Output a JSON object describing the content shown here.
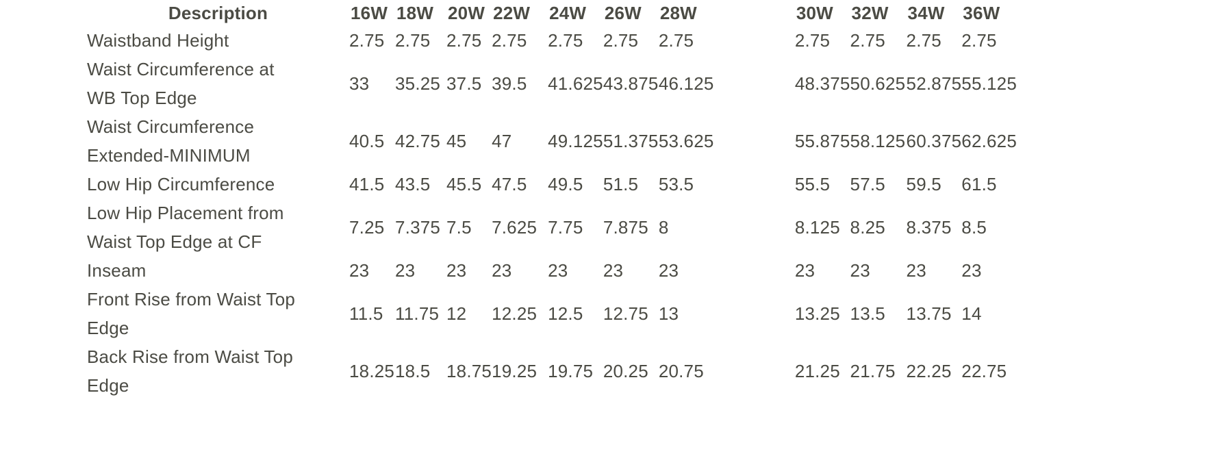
{
  "style": {
    "text_color": "#4b4b44",
    "background": "#ffffff"
  },
  "chart_data": {
    "type": "table",
    "header": {
      "description_label": "Description"
    },
    "columns": [
      "16W",
      "18W",
      "20W",
      "22W",
      "24W",
      "26W",
      "28W",
      "30W",
      "32W",
      "34W",
      "36W"
    ],
    "rows": [
      {
        "description": "Waistband Height",
        "values": [
          "2.75",
          "2.75",
          "2.75",
          "2.75",
          "2.75",
          "2.75",
          "2.75",
          "2.75",
          "2.75",
          "2.75",
          "2.75"
        ]
      },
      {
        "description": "Waist Circumference at\nWB Top Edge",
        "values": [
          "33",
          "35.25",
          "37.5",
          "39.5",
          "41.625",
          "43.875",
          "46.125",
          "48.375",
          "50.625",
          "52.875",
          "55.125"
        ]
      },
      {
        "description": "Waist Circumference\nExtended-MINIMUM",
        "values": [
          "40.5",
          "42.75",
          "45",
          "47",
          "49.125",
          "51.375",
          "53.625",
          "55.875",
          "58.125",
          "60.375",
          "62.625"
        ]
      },
      {
        "description": "Low Hip Circumference",
        "values": [
          "41.5",
          "43.5",
          "45.5",
          "47.5",
          "49.5",
          "51.5",
          "53.5",
          "55.5",
          "57.5",
          "59.5",
          "61.5"
        ]
      },
      {
        "description": "Low Hip Placement from\nWaist Top Edge at CF",
        "values": [
          "7.25",
          "7.375",
          "7.5",
          "7.625",
          "7.75",
          "7.875",
          "8",
          "8.125",
          "8.25",
          "8.375",
          "8.5"
        ]
      },
      {
        "description": "Inseam",
        "values": [
          "23",
          "23",
          "23",
          "23",
          "23",
          "23",
          "23",
          "23",
          "23",
          "23",
          "23"
        ]
      },
      {
        "description": "Front Rise from Waist Top\nEdge",
        "values": [
          "11.5",
          "11.75",
          "12",
          "12.25",
          "12.5",
          "12.75",
          "13",
          "13.25",
          "13.5",
          "13.75",
          "14"
        ]
      },
      {
        "description": "Back Rise from Waist Top\nEdge",
        "values": [
          "18.25",
          "18.5",
          "18.75",
          "19.25",
          "19.75",
          "20.25",
          "20.75",
          "21.25",
          "21.75",
          "22.25",
          "22.75"
        ]
      }
    ]
  }
}
